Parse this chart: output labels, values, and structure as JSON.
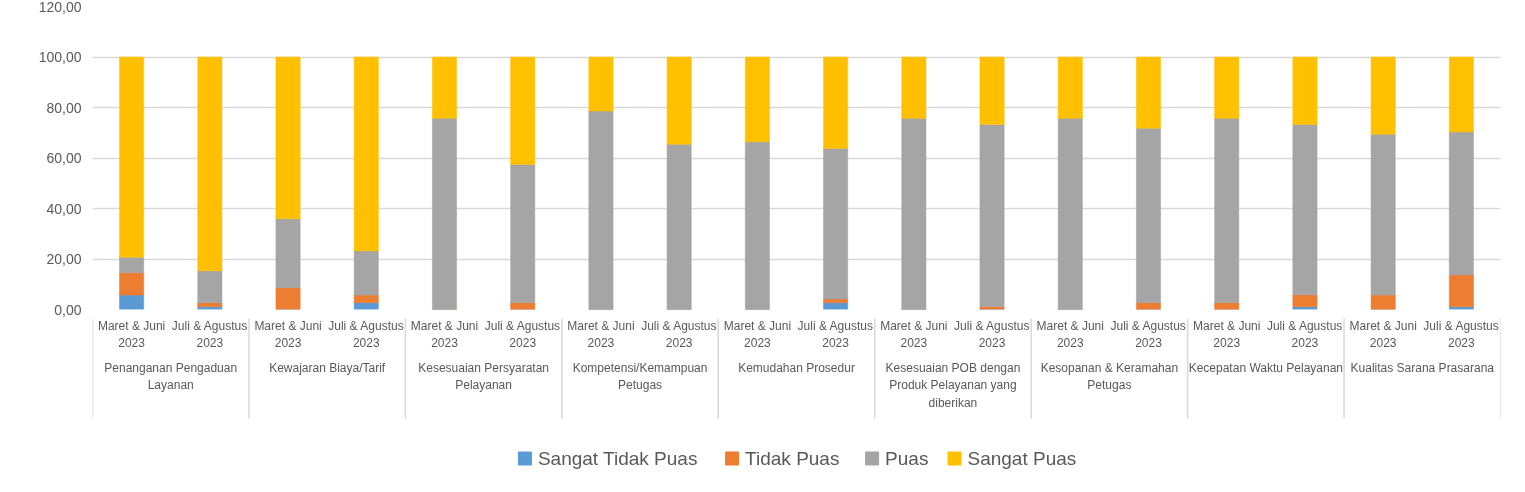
{
  "chart_data": {
    "type": "bar",
    "stacked": true,
    "categories": [
      "Maret & Juni 2023",
      "Juli & Agustus 2023",
      "Maret & Juni 2023",
      "Juli & Agustus 2023",
      "Maret & Juni 2023",
      "Juli & Agustus 2023",
      "Maret & Juni 2023",
      "Juli & Agustus 2023",
      "Maret & Juni 2023",
      "Juli & Agustus 2023",
      "Maret & Juni 2023",
      "Juli & Agustus 2023",
      "Maret & Juni 2023",
      "Juli & Agustus 2023",
      "Maret & Juni 2023",
      "Juli & Agustus 2023",
      "Maret & Juni 2023",
      "Juli & Agustus 2023"
    ],
    "annotations": [
      "Penanganan Pengaduan Layanan",
      "Kewajaran Biaya/Tarif",
      "Kesesuaian Persyaratan Pelayanan",
      "Kompetensi/Kemampuan Petugas",
      "Kemudahan Prosedur",
      "Kesesuaian POB dengan Produk Pelayanan yang diberikan",
      "Kesopanan & Keramahan Petugas",
      "Kecepatan Waktu Pelayanan",
      "Kualitas Sarana Prasarana"
    ],
    "series": [
      {
        "name": "Sangat Tidak Puas",
        "color": "#5b9bd5",
        "values": [
          5.7,
          1.1,
          0,
          2.7,
          0,
          0,
          0,
          0,
          0,
          2.7,
          0,
          0,
          0,
          0,
          0,
          1.1,
          0,
          1.1
        ]
      },
      {
        "name": "Tidak Puas",
        "color": "#ed7d31",
        "values": [
          8.9,
          1.6,
          8.6,
          3.0,
          0,
          2.7,
          0,
          0,
          0,
          1.5,
          0,
          1.1,
          0,
          2.7,
          2.7,
          4.7,
          5.7,
          12.6
        ]
      },
      {
        "name": "Puas",
        "color": "#a5a5a5",
        "values": [
          6.1,
          12.6,
          27.3,
          17.5,
          75.7,
          54.7,
          78.6,
          65.4,
          66.4,
          59.6,
          75.7,
          72.2,
          75.7,
          69.1,
          73.0,
          67.5,
          63.7,
          56.6
        ]
      },
      {
        "name": "Sangat Puas",
        "color": "#ffc000",
        "values": [
          79.3,
          84.7,
          64.1,
          76.8,
          24.3,
          42.6,
          21.4,
          34.6,
          33.6,
          36.2,
          24.3,
          26.7,
          24.3,
          28.2,
          24.3,
          26.7,
          30.6,
          29.7
        ]
      }
    ],
    "ylim": [
      0,
      120
    ],
    "yticks": [
      {
        "value": 0,
        "label": "0,00"
      },
      {
        "value": 20,
        "label": "20,00"
      },
      {
        "value": 40,
        "label": "40,00"
      },
      {
        "value": 60,
        "label": "60,00"
      },
      {
        "value": 80,
        "label": "80,00"
      },
      {
        "value": 100,
        "label": "100,00"
      },
      {
        "value": 120,
        "label": "120,00"
      }
    ],
    "grid": "y",
    "legend": "bottom"
  }
}
